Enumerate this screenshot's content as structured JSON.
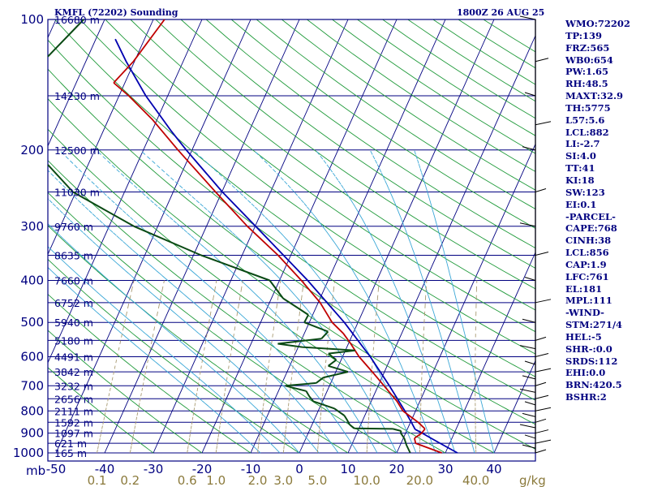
{
  "header": {
    "station": "KMFL (72202) Sounding",
    "datetime": "1800Z 26 AUG 25"
  },
  "colors": {
    "background": "#ffffff",
    "frame": "#000080",
    "isobar": "#000080",
    "isotherm": "#000080",
    "dry_adiabat": "#1f9a3a",
    "moist_adiabat": "#3aa7d6",
    "mixing_ratio": "#a89a72",
    "temperature": "#c00000",
    "dewpoint": "#0a4a14",
    "parcel": "#0000b0",
    "wind_barb": "#000000",
    "side_text": "#000080"
  },
  "side_panel": [
    "WMO:72202",
    "TP:139",
    "FRZ:565",
    "WB0:654",
    "PW:1.65",
    "RH:48.5",
    "MAXT:32.9",
    "TH:5775",
    "L57:5.6",
    "LCL:882",
    "LI:-2.7",
    "SI:4.0",
    "TT:41",
    "KI:18",
    "SW:123",
    "EI:0.1",
    "-PARCEL-",
    "CAPE:768",
    "CINH:38",
    "LCL:856",
    "CAP:1.9",
    "LFC:761",
    "EL:181",
    "MPL:111",
    "-WIND-",
    "STM:271/4",
    "HEL:-5",
    "SHR-:0.0",
    "SRDS:112",
    "EHI:0.0",
    "BRN:420.5",
    "BSHR:2"
  ],
  "chart_data": {
    "type": "skew-t log-p sounding",
    "title": "KMFL (72202) Sounding",
    "subtitle": "1800Z 26 AUG 25",
    "ylabel": "mb",
    "xlabel": "",
    "ylim": [
      1000,
      100
    ],
    "xlim_at_1000mb": [
      -50,
      50
    ],
    "pressure_ticks": [
      {
        "p": 100,
        "label": "100"
      },
      {
        "p": 200,
        "label": "200"
      },
      {
        "p": 300,
        "label": "300"
      },
      {
        "p": 400,
        "label": "400"
      },
      {
        "p": 500,
        "label": "500"
      },
      {
        "p": 600,
        "label": "600"
      },
      {
        "p": 700,
        "label": "700"
      },
      {
        "p": 800,
        "label": "800"
      },
      {
        "p": 900,
        "label": "900"
      },
      {
        "p": 1000,
        "label": "1000"
      }
    ],
    "height_labels": [
      {
        "p": 100,
        "label": "16680 m"
      },
      {
        "p": 150,
        "label": "14230 m"
      },
      {
        "p": 200,
        "label": "12500 m"
      },
      {
        "p": 250,
        "label": "11030 m"
      },
      {
        "p": 300,
        "label": "9760 m"
      },
      {
        "p": 350,
        "label": "8635 m"
      },
      {
        "p": 400,
        "label": "7660 m"
      },
      {
        "p": 450,
        "label": "6752 m"
      },
      {
        "p": 500,
        "label": "5940 m"
      },
      {
        "p": 550,
        "label": "5180 m"
      },
      {
        "p": 600,
        "label": "4491 m"
      },
      {
        "p": 650,
        "label": "3842 m"
      },
      {
        "p": 700,
        "label": "3232 m"
      },
      {
        "p": 750,
        "label": "2656 m"
      },
      {
        "p": 800,
        "label": "2111 m"
      },
      {
        "p": 850,
        "label": "1592 m"
      },
      {
        "p": 900,
        "label": "1097 m"
      },
      {
        "p": 950,
        "label": "621 m"
      },
      {
        "p": 1000,
        "label": "165 m"
      }
    ],
    "temperature_ticks": [
      {
        "t": -50,
        "label": "-50"
      },
      {
        "t": -40,
        "label": "-40"
      },
      {
        "t": -30,
        "label": "-30"
      },
      {
        "t": -20,
        "label": "-20"
      },
      {
        "t": -10,
        "label": "-10"
      },
      {
        "t": 0,
        "label": "0"
      },
      {
        "t": 10,
        "label": "10"
      },
      {
        "t": 20,
        "label": "20"
      },
      {
        "t": 30,
        "label": "30"
      },
      {
        "t": 40,
        "label": "40"
      }
    ],
    "mixing_ratio_ticks": [
      {
        "w": 0.1,
        "label": "0.1"
      },
      {
        "w": 0.2,
        "label": "0.2"
      },
      {
        "w": 0.6,
        "label": "0.6"
      },
      {
        "w": 1.0,
        "label": "1.0"
      },
      {
        "w": 2.0,
        "label": "2.0"
      },
      {
        "w": 3.0,
        "label": "3.0"
      },
      {
        "w": 5.0,
        "label": "5.0"
      },
      {
        "w": 10.0,
        "label": "10.0"
      },
      {
        "w": 20.0,
        "label": "20.0"
      },
      {
        "w": 40.0,
        "label": "40.0"
      }
    ],
    "mixing_ratio_unit": "g/kg",
    "temperature": [
      {
        "p": 1006,
        "t": 30.0
      },
      {
        "p": 950,
        "t": 23.0
      },
      {
        "p": 925,
        "t": 22.3
      },
      {
        "p": 900,
        "t": 23.3
      },
      {
        "p": 880,
        "t": 23.6
      },
      {
        "p": 850,
        "t": 21.6
      },
      {
        "p": 800,
        "t": 17.4
      },
      {
        "p": 760,
        "t": 15.3
      },
      {
        "p": 700,
        "t": 11.2
      },
      {
        "p": 650,
        "t": 7.5
      },
      {
        "p": 600,
        "t": 3.4
      },
      {
        "p": 560,
        "t": 0.5
      },
      {
        "p": 530,
        "t": -2.0
      },
      {
        "p": 500,
        "t": -5.3
      },
      {
        "p": 450,
        "t": -9.6
      },
      {
        "p": 400,
        "t": -15.5
      },
      {
        "p": 350,
        "t": -22.6
      },
      {
        "p": 300,
        "t": -31.6
      },
      {
        "p": 250,
        "t": -41.3
      },
      {
        "p": 200,
        "t": -52.9
      },
      {
        "p": 170,
        "t": -61.0
      },
      {
        "p": 150,
        "t": -68.0
      },
      {
        "p": 140,
        "t": -72.3
      },
      {
        "p": 125,
        "t": -70.2
      },
      {
        "p": 100,
        "t": -67.7
      }
    ],
    "dewpoint": [
      {
        "p": 1006,
        "t": 23.0
      },
      {
        "p": 960,
        "t": 21.3
      },
      {
        "p": 925,
        "t": 20.2
      },
      {
        "p": 900,
        "t": 19.0
      },
      {
        "p": 890,
        "t": 18.9
      },
      {
        "p": 880,
        "t": 17.0
      },
      {
        "p": 878,
        "t": 9.0
      },
      {
        "p": 860,
        "t": 7.7
      },
      {
        "p": 840,
        "t": 6.8
      },
      {
        "p": 820,
        "t": 5.8
      },
      {
        "p": 790,
        "t": 3.1
      },
      {
        "p": 760,
        "t": -1.9
      },
      {
        "p": 740,
        "t": -3.2
      },
      {
        "p": 720,
        "t": -4.3
      },
      {
        "p": 700,
        "t": -9.1
      },
      {
        "p": 690,
        "t": -3.0
      },
      {
        "p": 670,
        "t": -2.0
      },
      {
        "p": 650,
        "t": 2.5
      },
      {
        "p": 630,
        "t": -2.1
      },
      {
        "p": 610,
        "t": -1.0
      },
      {
        "p": 590,
        "t": -3.2
      },
      {
        "p": 580,
        "t": 2.0
      },
      {
        "p": 570,
        "t": -9.2
      },
      {
        "p": 560,
        "t": -14.5
      },
      {
        "p": 545,
        "t": -6.0
      },
      {
        "p": 525,
        "t": -5.3
      },
      {
        "p": 500,
        "t": -11.0
      },
      {
        "p": 480,
        "t": -10.9
      },
      {
        "p": 440,
        "t": -17.6
      },
      {
        "p": 400,
        "t": -22.0
      },
      {
        "p": 350,
        "t": -38.4
      },
      {
        "p": 300,
        "t": -54.9
      },
      {
        "p": 250,
        "t": -70.6
      },
      {
        "p": 200,
        "t": -82.4
      },
      {
        "p": 150,
        "t": -92.4
      },
      {
        "p": 100,
        "t": -84.3
      }
    ],
    "parcel": [
      {
        "p": 1006,
        "t": 33.0
      },
      {
        "p": 960,
        "t": 28.9
      },
      {
        "p": 925,
        "t": 25.7
      },
      {
        "p": 900,
        "t": 23.4
      },
      {
        "p": 882,
        "t": 21.6
      },
      {
        "p": 850,
        "t": 20.2
      },
      {
        "p": 800,
        "t": 17.8
      },
      {
        "p": 700,
        "t": 12.3
      },
      {
        "p": 600,
        "t": 5.7
      },
      {
        "p": 500,
        "t": -2.8
      },
      {
        "p": 400,
        "t": -14.2
      },
      {
        "p": 300,
        "t": -29.9
      },
      {
        "p": 250,
        "t": -39.9
      },
      {
        "p": 200,
        "t": -51.2
      },
      {
        "p": 181,
        "t": -56.0
      },
      {
        "p": 150,
        "t": -64.5
      },
      {
        "p": 125,
        "t": -71.7
      },
      {
        "p": 111,
        "t": -76.0
      }
    ],
    "wind_barbs_pressure": [
      1000,
      975,
      950,
      925,
      900,
      875,
      850,
      825,
      800,
      775,
      750,
      725,
      700,
      675,
      650,
      625,
      600,
      575,
      550,
      500,
      450,
      400,
      350,
      300,
      250,
      200,
      175,
      150,
      125,
      100
    ]
  }
}
